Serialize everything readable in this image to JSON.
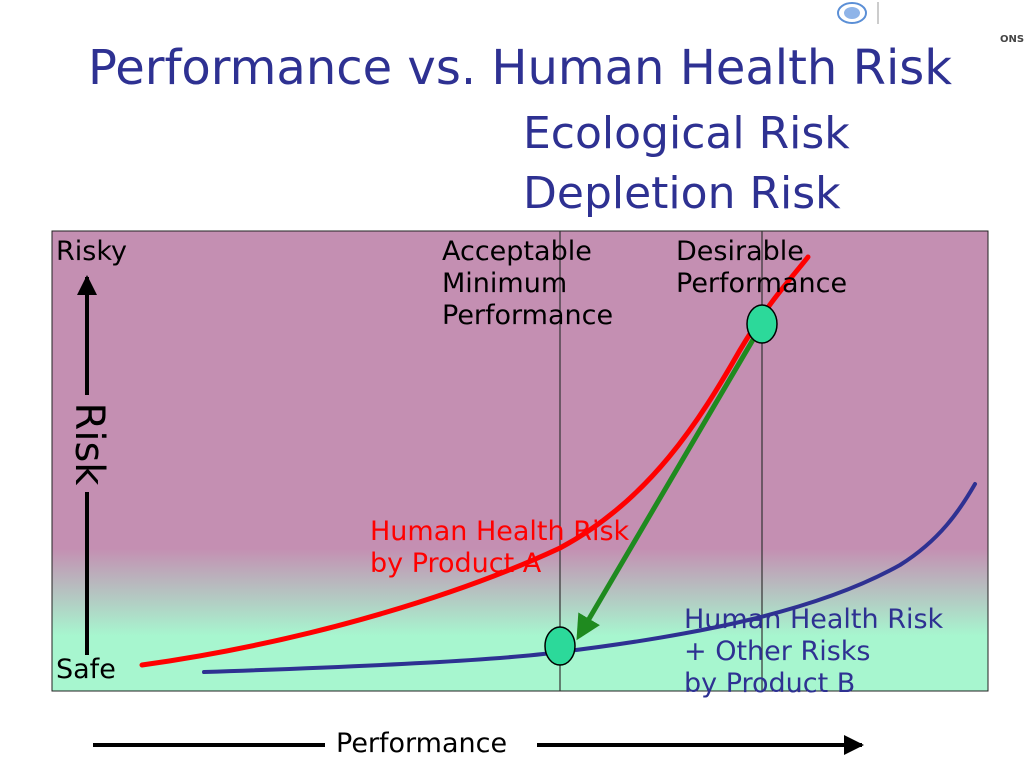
{
  "slide": {
    "title": "Performance vs. Human Health Risk",
    "subtitle_line1": "Ecological Risk",
    "subtitle_line2": "Depletion Risk",
    "logo_text": "ONS"
  },
  "diagram": {
    "y_top_label": "Risky",
    "y_bottom_label": "Safe",
    "y_axis_label": "Risk",
    "x_axis_label": "Performance",
    "threshold_acceptable": [
      "Acceptable",
      "Minimum",
      "Performance"
    ],
    "threshold_desirable": [
      "Desirable",
      "Performance"
    ],
    "product_a_label": [
      "Human Health Risk",
      "by Product A"
    ],
    "product_b_label": [
      "Human Health Risk",
      "+ Other Risks",
      "by Product B"
    ]
  },
  "colors": {
    "title": "#2e3192",
    "risky_zone": "#c48fb2",
    "safe_zone": "#a7f6cf",
    "product_a": "#ff0000",
    "product_b": "#2e3192",
    "arrow": "#1f8a1f",
    "marker": "#2cd99a"
  }
}
